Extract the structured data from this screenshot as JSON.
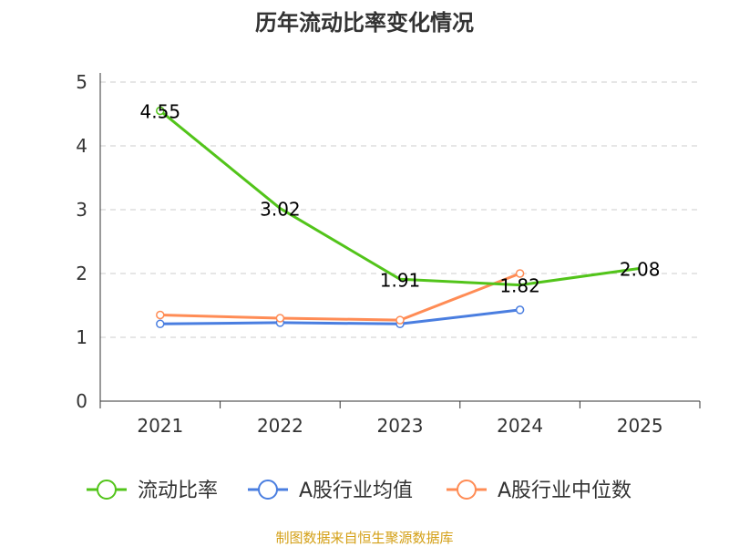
{
  "chart_data": {
    "type": "line",
    "title": "历年流动比率变化情况",
    "categories": [
      "2021",
      "2022",
      "2023",
      "2024",
      "2025"
    ],
    "ylim": [
      0,
      5
    ],
    "yticks": [
      0,
      1,
      2,
      3,
      4,
      5
    ],
    "grid": true,
    "legend_position": "bottom",
    "series": [
      {
        "name": "流动比率",
        "color": "#52c41a",
        "values": [
          4.55,
          3.02,
          1.91,
          1.82,
          2.08
        ],
        "labels": [
          "4.55",
          "3.02",
          "1.91",
          "1.82",
          "2.08"
        ],
        "markers": [
          true,
          false,
          false,
          false,
          false
        ]
      },
      {
        "name": "A股行业均值",
        "color": "#4a7ee0",
        "values": [
          1.21,
          1.23,
          1.21,
          1.43,
          null
        ],
        "markers": [
          true,
          true,
          true,
          true,
          false
        ]
      },
      {
        "name": "A股行业中位数",
        "color": "#ff8c55",
        "values": [
          1.35,
          1.3,
          1.27,
          2.0,
          null
        ],
        "markers": [
          true,
          true,
          true,
          true,
          false
        ]
      }
    ]
  },
  "footer": {
    "source": "制图数据来自恒生聚源数据库"
  }
}
